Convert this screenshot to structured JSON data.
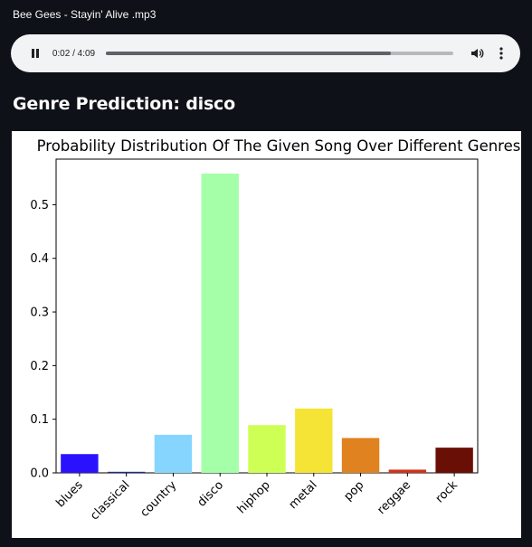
{
  "audio": {
    "file_name": "Bee Gees - Stayin' Alive .mp3",
    "time_display": "0:02 / 4:09",
    "progress_fraction": 0.008,
    "buffered_fraction": 0.82
  },
  "prediction": {
    "text": "Genre Prediction: disco"
  },
  "chart_data": {
    "type": "bar",
    "title": "Probability Distribution Of The Given Song Over Different Genres",
    "xlabel": "",
    "ylabel": "",
    "categories": [
      "blues",
      "classical",
      "country",
      "disco",
      "hiphop",
      "metal",
      "pop",
      "reggae",
      "rock"
    ],
    "values": [
      0.035,
      0.002,
      0.071,
      0.558,
      0.089,
      0.12,
      0.065,
      0.006,
      0.047
    ],
    "colors": [
      "#2b12ff",
      "#1b2c8c",
      "#85d5ff",
      "#a4ffa8",
      "#cdff55",
      "#f5e436",
      "#e0821f",
      "#d3321a",
      "#6a0f06"
    ],
    "ylim": [
      0,
      0.585
    ],
    "yticks": [
      "0.0",
      "0.1",
      "0.2",
      "0.3",
      "0.4",
      "0.5"
    ],
    "grid": false,
    "legend": "none"
  }
}
